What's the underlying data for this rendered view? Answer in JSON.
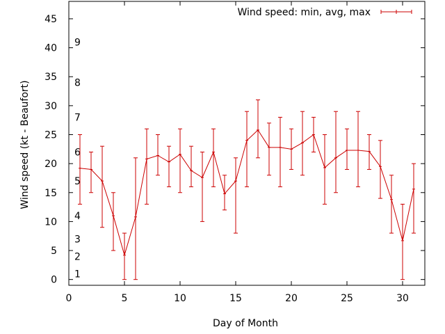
{
  "chart_data": {
    "type": "line",
    "xlabel": "Day of Month",
    "ylabel": "Wind speed (kt - Beaufort)",
    "xlim": [
      0,
      32
    ],
    "ylim": [
      -1,
      48
    ],
    "x_ticks": [
      0,
      5,
      10,
      15,
      20,
      25,
      30
    ],
    "y_ticks": [
      0,
      5,
      10,
      15,
      20,
      25,
      30,
      35,
      40,
      45
    ],
    "grid": false,
    "legend_position": "top-right",
    "series": [
      {
        "name": "Wind speed: min, avg, max",
        "color": "#cc0000",
        "x": [
          1,
          2,
          3,
          4,
          5,
          6,
          7,
          8,
          9,
          10,
          11,
          12,
          13,
          14,
          15,
          16,
          17,
          18,
          19,
          20,
          21,
          22,
          23,
          24,
          25,
          26,
          27,
          28,
          29,
          30,
          31
        ],
        "avg": [
          19.2,
          19,
          17,
          11,
          4.2,
          10.8,
          20.8,
          21.4,
          20.3,
          21.6,
          18.8,
          17.6,
          22,
          14.8,
          17,
          24,
          25.8,
          22.8,
          22.8,
          22.5,
          23.6,
          25,
          19.3,
          21,
          22.3,
          22.3,
          22.1,
          19.5,
          13.8,
          6.7,
          15.6
        ],
        "min": [
          13,
          15,
          9,
          5,
          0,
          0,
          13,
          18,
          16,
          15,
          16,
          10,
          16,
          12,
          8,
          16,
          21,
          18,
          16,
          19,
          18,
          22,
          13,
          15,
          19,
          16,
          19,
          14,
          8,
          0,
          8
        ],
        "max": [
          25,
          22,
          23,
          15,
          8,
          21,
          26,
          25,
          23,
          26,
          23,
          22,
          26,
          18,
          21,
          29,
          31,
          27,
          28,
          26,
          29,
          28,
          25,
          29,
          26,
          29,
          25,
          24,
          18,
          13,
          20
        ]
      }
    ],
    "beaufort_labels": [
      {
        "label": "1",
        "value": 1
      },
      {
        "label": "2",
        "value": 4
      },
      {
        "label": "3",
        "value": 7
      },
      {
        "label": "4",
        "value": 11
      },
      {
        "label": "5",
        "value": 17
      },
      {
        "label": "6",
        "value": 22
      },
      {
        "label": "7",
        "value": 28
      },
      {
        "label": "8",
        "value": 34
      },
      {
        "label": "9",
        "value": 41
      }
    ]
  }
}
